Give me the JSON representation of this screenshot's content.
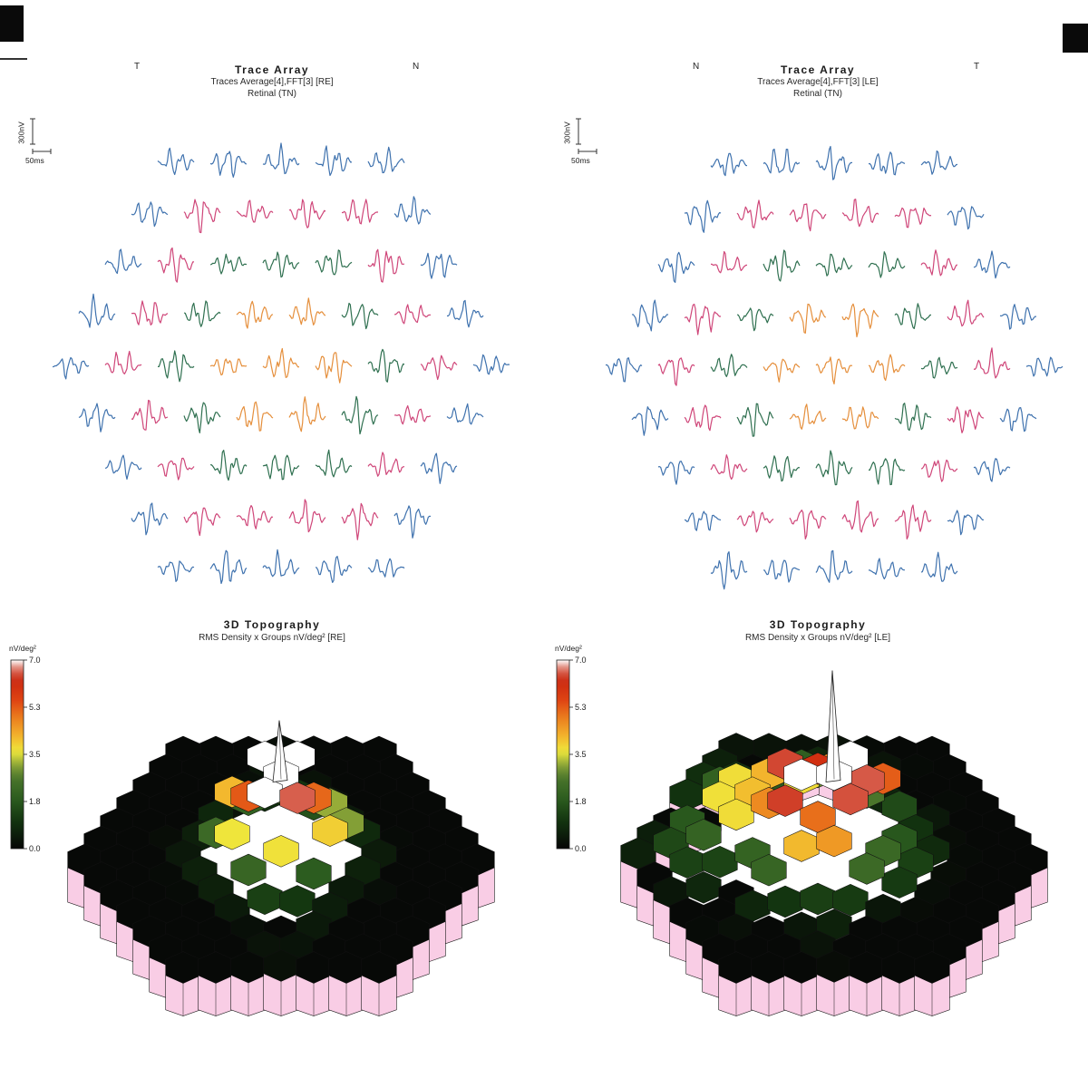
{
  "report": {
    "background": "#ffffff"
  },
  "colors": {
    "trace_rings": [
      "#e58f3c",
      "#2f7050",
      "#cf4679",
      "#3f72ae"
    ],
    "skirt": "#f9cde5",
    "outline": "#1a1a1a",
    "colormap": [
      [
        0,
        "#060606"
      ],
      [
        1.0,
        "#12330f"
      ],
      [
        1.8,
        "#2a5a1e"
      ],
      [
        2.6,
        "#49742b"
      ],
      [
        3.1,
        "#8aa437"
      ],
      [
        3.6,
        "#efe93c"
      ],
      [
        4.2,
        "#f3b22c"
      ],
      [
        4.9,
        "#ea7a1d"
      ],
      [
        5.5,
        "#df4413"
      ],
      [
        6.2,
        "#cc2a10"
      ],
      [
        6.65,
        "#d96a5a"
      ],
      [
        7,
        "#ffffff"
      ]
    ]
  },
  "panels": {
    "trace_re": {
      "title": "Trace Array",
      "subtitle": "Traces Average[4],FFT[3] [RE]",
      "axis_note": "Retinal (TN)",
      "corner_left": "T",
      "corner_right": "N",
      "scale_vertical": "300nV",
      "scale_horizontal": "50ms"
    },
    "trace_le": {
      "title": "Trace Array",
      "subtitle": "Traces Average[4],FFT[3] [LE]",
      "axis_note": "Retinal (TN)",
      "corner_left": "N",
      "corner_right": "T",
      "scale_vertical": "300nV",
      "scale_horizontal": "50ms"
    },
    "topo_re": {
      "title": "3D Topography",
      "subtitle": "RMS Density x Groups nV/deg² [RE]",
      "colorbar_label": "nV/deg²",
      "colorbar_ticks": [
        "7.0",
        "5.3",
        "3.5",
        "1.8",
        "0.0"
      ]
    },
    "topo_le": {
      "title": "3D Topography",
      "subtitle": "RMS Density x Groups nV/deg² [LE]",
      "colorbar_label": "nV/deg²",
      "colorbar_ticks": [
        "7.0",
        "5.3",
        "3.5",
        "1.8",
        "0.0"
      ]
    }
  },
  "chart_data": [
    {
      "type": "trace-array",
      "eye": "RE",
      "title": "Trace Array",
      "subtitle": "Traces Average[4],FFT[3] [RE]",
      "axis_note": "Retinal (TN)",
      "orientation": {
        "left": "T",
        "right": "N"
      },
      "scale_bar": {
        "vertical": "300nV",
        "horizontal": "50ms"
      },
      "layout": "61 multifocal ERG waveform traces in a hexagonal array (rows 5-6-7-8-9-8-7-6-5), grouped into 5 concentric eccentricity rings",
      "ring_groups": [
        {
          "rings": "center + ring 1 (7 traces)",
          "color": "#e58f3c"
        },
        {
          "rings": "ring 2 (12 traces)",
          "color": "#2f7050"
        },
        {
          "rings": "ring 3 (18 traces)",
          "color": "#cf4679"
        },
        {
          "rings": "ring 4 (24 traces)",
          "color": "#3f72ae"
        }
      ]
    },
    {
      "type": "trace-array",
      "eye": "LE",
      "title": "Trace Array",
      "subtitle": "Traces Average[4],FFT[3] [LE]",
      "axis_note": "Retinal (TN)",
      "orientation": {
        "left": "N",
        "right": "T"
      },
      "scale_bar": {
        "vertical": "300nV",
        "horizontal": "50ms"
      },
      "layout": "61 multifocal ERG waveform traces in a hexagonal array (rows 5-6-7-8-9-8-7-6-5), grouped into 5 concentric eccentricity rings",
      "ring_groups": [
        {
          "rings": "center + ring 1 (7 traces)",
          "color": "#e58f3c"
        },
        {
          "rings": "ring 2 (12 traces)",
          "color": "#2f7050"
        },
        {
          "rings": "ring 3 (18 traces)",
          "color": "#cf4679"
        },
        {
          "rings": "ring 4 (24 traces)",
          "color": "#3f72ae"
        }
      ]
    },
    {
      "type": "3d-topography",
      "eye": "RE",
      "title": "3D Topography",
      "subtitle": "RMS Density x Groups nV/deg² [RE]",
      "zlabel": "nV/deg²",
      "z_ticks": [
        7.0,
        5.3,
        3.5,
        1.8,
        0.0
      ],
      "z_range": [
        0.0,
        7.0
      ],
      "description": "Hexagonal-cell 3D response-density surface; narrow white foveal peak spike reaching ~7 nV/deg2, red/orange central ridge ~4-6, green mid-periphery ~1-3, scattered near-zero black patches in periphery, pink base skirt around the mound"
    },
    {
      "type": "3d-topography",
      "eye": "LE",
      "title": "3D Topography",
      "subtitle": "RMS Density x Groups nV/deg² [LE]",
      "zlabel": "nV/deg²",
      "z_ticks": [
        7.0,
        5.3,
        3.5,
        1.8,
        0.0
      ],
      "z_range": [
        0.0,
        7.0
      ],
      "description": "Hexagonal-cell 3D response-density surface; tall white foveal peak spike ~7 nV/deg2 with a broad elevated red/orange region extending to the upper-left, yellow/green mid-zones, black low-response patches inferiorly, pink base skirt"
    }
  ]
}
